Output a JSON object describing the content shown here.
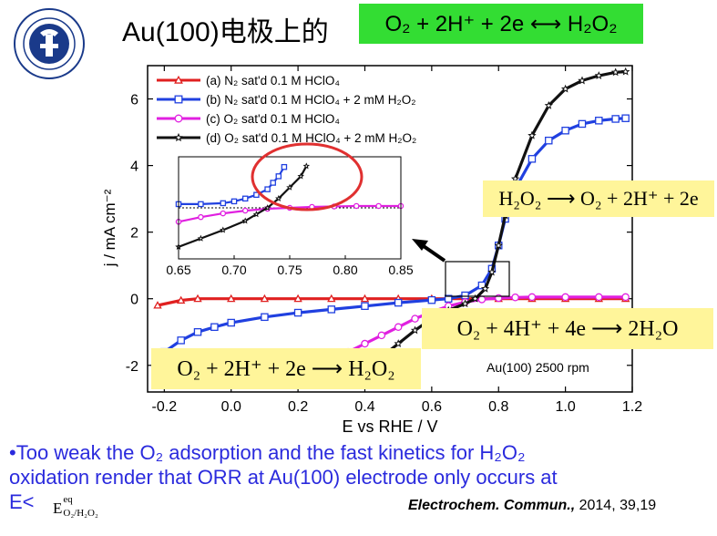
{
  "title": {
    "prefix": "Au(100)电极上的",
    "equation": "O₂ + 2H⁺ + 2e ⟷ H₂O₂"
  },
  "colors": {
    "title_eq_bg": "#33dd33",
    "eq_box_bg": "#fff59a",
    "bullet_text": "#2a2add",
    "circle": "#e03030"
  },
  "equation_boxes": {
    "oxidation": "H₂O₂ ⟶ O₂ + 2H⁺ + 2e",
    "four_electron": "O₂ + 4H⁺ + 4e ⟶ 2H₂O",
    "two_electron": "O₂ + 2H⁺ + 2e ⟶ H₂O₂"
  },
  "bullet": {
    "line1": "•Too weak the O₂ adsorption and the fast kinetics for H₂O₂",
    "line2": "oxidation render that ORR at Au(100) electrode only occurs at",
    "line3_prefix": "E<",
    "symbol": "E",
    "symbol_sup": "eq",
    "symbol_sub": "O₂/H₂O₂"
  },
  "reference": {
    "journal": "Electrochem. Commun.,",
    "details": " 2014, 39,19"
  },
  "chart_data": [
    {
      "type": "line",
      "xlabel": "E vs RHE / V",
      "ylabel": "j / mA cm⁻²",
      "xlim": [
        -0.25,
        1.2
      ],
      "ylim": [
        -2.8,
        7.0
      ],
      "xticks": [
        -0.2,
        0.0,
        0.2,
        0.4,
        0.6,
        0.8,
        1.0,
        1.2
      ],
      "xtick_labels": [
        "-0.2",
        "0.0",
        "0.2",
        "0.4",
        "0.6",
        "0.8",
        "1.0",
        "1.2"
      ],
      "yticks": [
        -2,
        0,
        2,
        4,
        6
      ],
      "ytick_labels": [
        "-2",
        "0",
        "2",
        "4",
        "6"
      ],
      "annotation": "Au(100) 2500 rpm",
      "legend_position": "top-left",
      "series": [
        {
          "name": "(a) N₂ sat'd 0.1 M HClO₄",
          "color": "#e02020",
          "marker": "triangle",
          "x": [
            -0.22,
            -0.15,
            -0.1,
            0.0,
            0.1,
            0.2,
            0.3,
            0.4,
            0.5,
            0.6,
            0.7,
            0.8,
            0.9,
            1.0,
            1.1,
            1.18
          ],
          "y": [
            -0.2,
            -0.05,
            0.0,
            0.0,
            0.0,
            0.0,
            0.0,
            0.0,
            0.0,
            0.0,
            0.0,
            0.0,
            0.0,
            0.0,
            0.0,
            0.0
          ]
        },
        {
          "name": "(b) N₂ sat'd 0.1 M HClO₄ + 2 mM H₂O₂",
          "color": "#2040e0",
          "marker": "square",
          "x": [
            -0.22,
            -0.2,
            -0.15,
            -0.1,
            -0.05,
            0.0,
            0.1,
            0.2,
            0.3,
            0.4,
            0.5,
            0.6,
            0.65,
            0.7,
            0.75,
            0.78,
            0.8,
            0.82,
            0.85,
            0.9,
            0.95,
            1.0,
            1.05,
            1.1,
            1.15,
            1.18
          ],
          "y": [
            -1.85,
            -1.6,
            -1.25,
            -1.0,
            -0.85,
            -0.72,
            -0.55,
            -0.42,
            -0.32,
            -0.22,
            -0.12,
            -0.04,
            0.0,
            0.1,
            0.4,
            0.9,
            1.6,
            2.4,
            3.3,
            4.2,
            4.75,
            5.05,
            5.25,
            5.35,
            5.4,
            5.42
          ]
        },
        {
          "name": "(c) O₂ sat'd 0.1 M HClO₄",
          "color": "#e020e0",
          "marker": "circle",
          "x": [
            0.2,
            0.25,
            0.3,
            0.35,
            0.4,
            0.45,
            0.5,
            0.55,
            0.6,
            0.65,
            0.7,
            0.75,
            0.8,
            0.85,
            0.9,
            1.0,
            1.1,
            1.18
          ],
          "y": [
            -2.1,
            -1.95,
            -1.8,
            -1.6,
            -1.35,
            -1.1,
            -0.85,
            -0.6,
            -0.4,
            -0.22,
            -0.1,
            -0.02,
            0.02,
            0.04,
            0.05,
            0.05,
            0.05,
            0.05
          ]
        },
        {
          "name": "(d) O₂ sat'd 0.1 M HClO₄ + 2 mM H₂O₂",
          "color": "#111111",
          "marker": "star",
          "x": [
            0.42,
            0.45,
            0.5,
            0.55,
            0.6,
            0.65,
            0.7,
            0.73,
            0.76,
            0.78,
            0.8,
            0.82,
            0.85,
            0.9,
            0.95,
            1.0,
            1.05,
            1.1,
            1.15,
            1.18
          ],
          "y": [
            -2.0,
            -1.75,
            -1.35,
            -0.95,
            -0.6,
            -0.35,
            -0.15,
            0.0,
            0.3,
            0.8,
            1.6,
            2.5,
            3.6,
            4.9,
            5.8,
            6.3,
            6.55,
            6.7,
            6.8,
            6.82
          ]
        }
      ]
    },
    {
      "type": "line",
      "xlim": [
        0.65,
        0.85
      ],
      "ylim": [
        -0.55,
        0.55
      ],
      "xticks": [
        0.65,
        0.7,
        0.75,
        0.8,
        0.85
      ],
      "xtick_labels": [
        "0.65",
        "0.70",
        "0.75",
        "0.80",
        "0.85"
      ],
      "reference_line_y": 0.0,
      "series": [
        {
          "name": "(b)",
          "color": "#2040e0",
          "marker": "square",
          "x": [
            0.65,
            0.67,
            0.69,
            0.7,
            0.71,
            0.72,
            0.73,
            0.735,
            0.74,
            0.745
          ],
          "y": [
            0.04,
            0.04,
            0.05,
            0.07,
            0.1,
            0.14,
            0.2,
            0.27,
            0.34,
            0.44
          ]
        },
        {
          "name": "(c)",
          "color": "#e020e0",
          "marker": "circle",
          "x": [
            0.65,
            0.67,
            0.69,
            0.71,
            0.73,
            0.75,
            0.77,
            0.79,
            0.81,
            0.83,
            0.85
          ],
          "y": [
            -0.15,
            -0.1,
            -0.06,
            -0.03,
            -0.01,
            0.0,
            0.01,
            0.015,
            0.02,
            0.02,
            0.02
          ]
        },
        {
          "name": "(d)",
          "color": "#111111",
          "marker": "star",
          "x": [
            0.65,
            0.67,
            0.69,
            0.71,
            0.72,
            0.73,
            0.74,
            0.75,
            0.76,
            0.765
          ],
          "y": [
            -0.42,
            -0.33,
            -0.24,
            -0.14,
            -0.07,
            0.0,
            0.1,
            0.22,
            0.34,
            0.45
          ]
        }
      ]
    }
  ]
}
